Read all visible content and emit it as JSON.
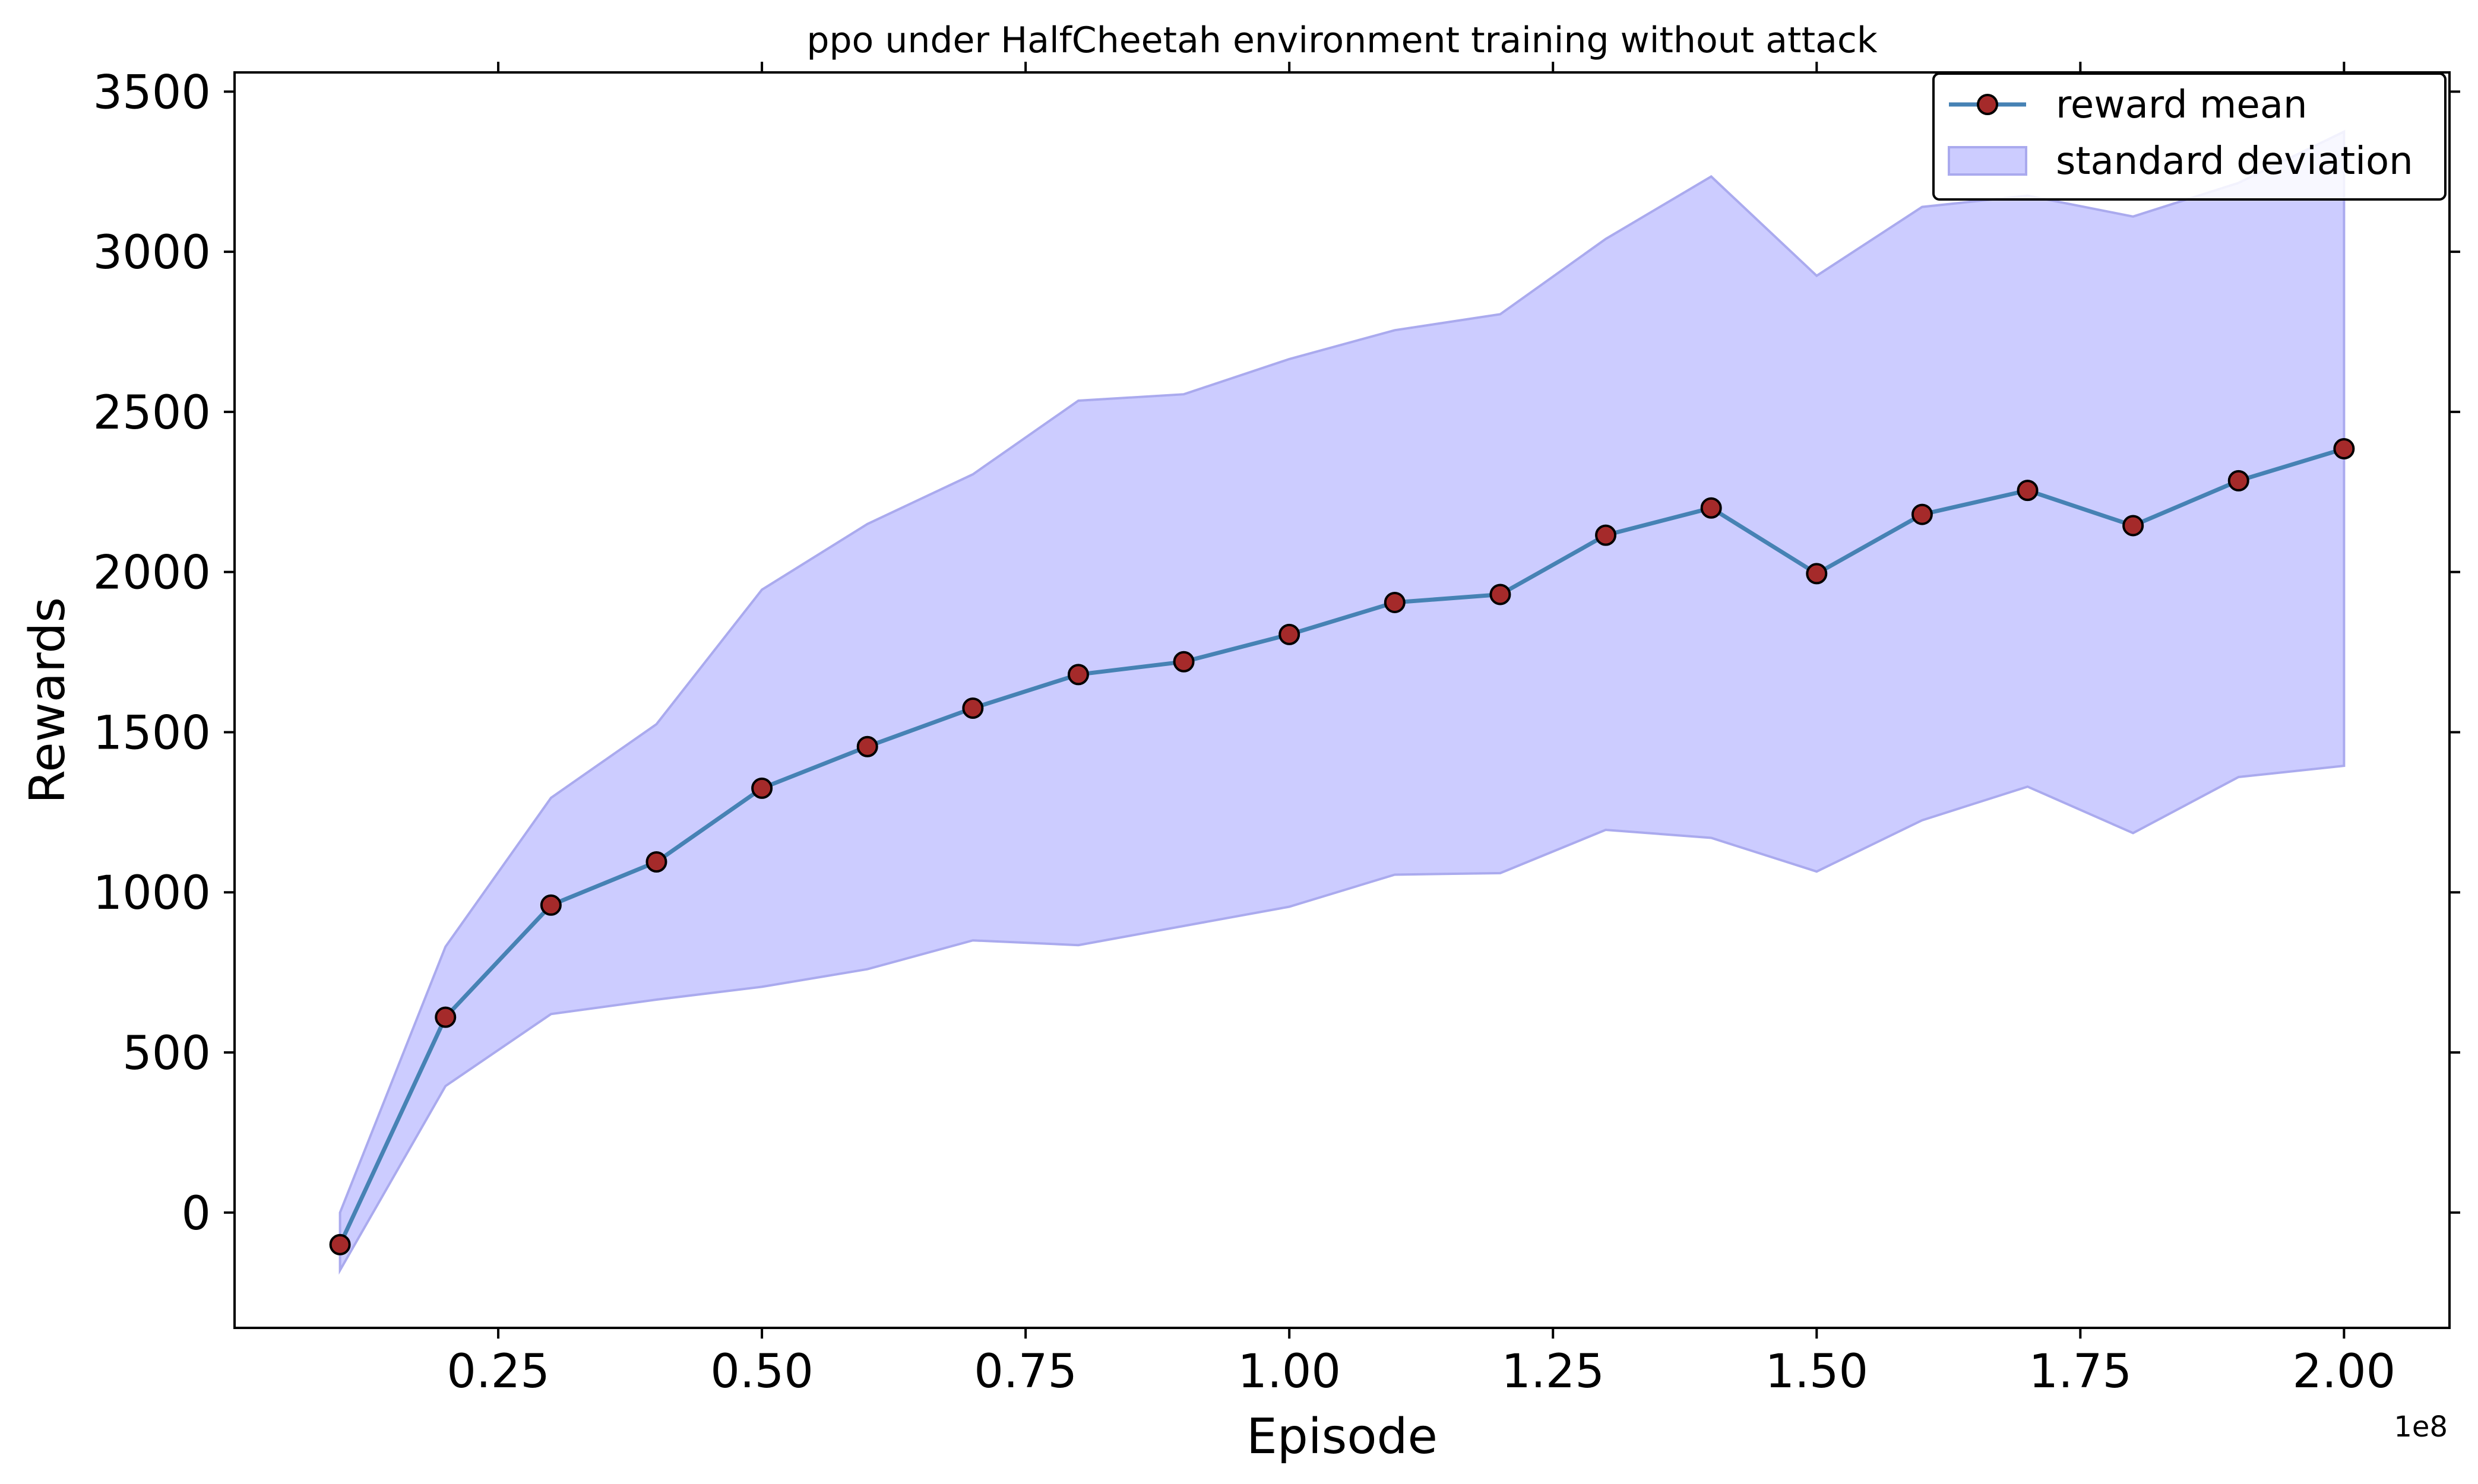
{
  "chart_data": {
    "type": "line",
    "title": "ppo under HalfCheetah environment training without attack",
    "xlabel": "Episode",
    "ylabel": "Rewards",
    "x_offset_label": "1e8",
    "xlim": [
      0.0,
      2.1
    ],
    "ylim": [
      -360,
      3560
    ],
    "x_ticks": [
      0.25,
      0.5,
      0.75,
      1.0,
      1.25,
      1.5,
      1.75,
      2.0
    ],
    "x_tick_labels": [
      "0.25",
      "0.50",
      "0.75",
      "1.00",
      "1.25",
      "1.50",
      "1.75",
      "2.00"
    ],
    "y_ticks": [
      0,
      500,
      1000,
      1500,
      2000,
      2500,
      3000,
      3500
    ],
    "y_tick_labels": [
      "0",
      "500",
      "1000",
      "1500",
      "2000",
      "2500",
      "3000",
      "3500"
    ],
    "grid": false,
    "legend_position": "top-right",
    "x": [
      0.1,
      0.2,
      0.3,
      0.4,
      0.5,
      0.6,
      0.7,
      0.8,
      0.9,
      1.0,
      1.1,
      1.2,
      1.3,
      1.4,
      1.5,
      1.6,
      1.7,
      1.8,
      1.9,
      2.0
    ],
    "series": [
      {
        "name": "reward mean",
        "kind": "line-marker",
        "line_color": "#4682b4",
        "marker_color": "#a52a2a",
        "values": [
          -100,
          610,
          960,
          1095,
          1325,
          1455,
          1575,
          1680,
          1720,
          1805,
          1905,
          1930,
          2115,
          2200,
          1995,
          2180,
          2255,
          2145,
          2285,
          2385
        ]
      },
      {
        "name": "standard deviation",
        "kind": "band",
        "fill_color": "#ccccff",
        "edge_color": "#aaaaee",
        "upper": [
          0,
          830,
          1295,
          1525,
          1945,
          2150,
          2305,
          2535,
          2555,
          2665,
          2755,
          2805,
          3040,
          3235,
          2925,
          3140,
          3175,
          3110,
          3215,
          3375
        ],
        "lower": [
          -180,
          395,
          620,
          665,
          705,
          760,
          850,
          835,
          895,
          955,
          1055,
          1060,
          1195,
          1170,
          1065,
          1225,
          1330,
          1185,
          1360,
          1395
        ]
      }
    ]
  }
}
